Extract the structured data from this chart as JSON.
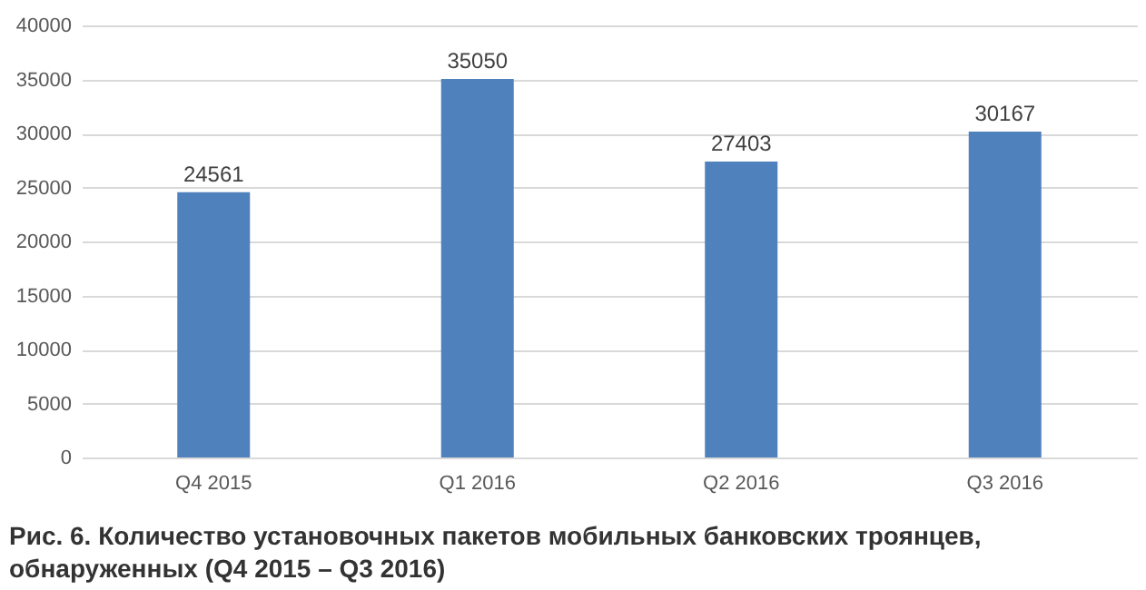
{
  "chart_data": {
    "type": "bar",
    "title": "Рис. 6. Количество установочных пакетов мобильных банковских троянцев,\nобнаруженных (Q4 2015 – Q3 2016)",
    "categories": [
      "Q4 2015",
      "Q1 2016",
      "Q2 2016",
      "Q3 2016"
    ],
    "values": [
      24561,
      35050,
      27403,
      30167
    ],
    "color": "#4f81bd",
    "ylim": [
      0,
      40000
    ],
    "yticks": [
      0,
      5000,
      10000,
      15000,
      20000,
      25000,
      30000,
      35000,
      40000
    ],
    "grid": "y",
    "data_labels": true
  }
}
